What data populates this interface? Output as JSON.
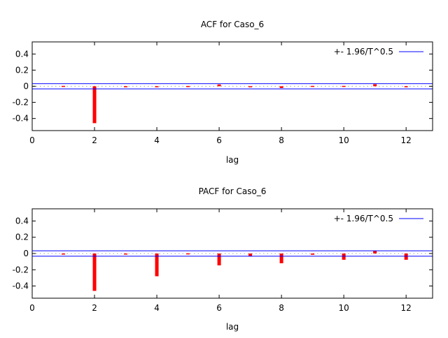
{
  "chart_data": [
    {
      "type": "bar",
      "title": "ACF for Caso_6",
      "xlabel": "lag",
      "ylabel": "",
      "xlim": [
        0,
        12.85
      ],
      "ylim": [
        -0.55,
        0.55
      ],
      "xticks": [
        "0",
        "2",
        "4",
        "6",
        "8",
        "10",
        "12"
      ],
      "yticks": [
        "0.4",
        "0.2",
        "0",
        "-0.2",
        "-0.4"
      ],
      "legend": {
        "label": "+- 1.96/T^0.5",
        "position": "top-right"
      },
      "band": 0.033,
      "lags": [
        1,
        2,
        3,
        4,
        5,
        6,
        7,
        8,
        9,
        10,
        11,
        12
      ],
      "values": [
        0.005,
        -0.458,
        0.0,
        -0.01,
        0.003,
        0.022,
        -0.01,
        -0.022,
        0.005,
        0.005,
        0.025,
        -0.012
      ],
      "colors": {
        "bar": "#ff0000",
        "band": "#0000ff",
        "zero": "#a0a0a0"
      }
    },
    {
      "type": "bar",
      "title": "PACF for Caso_6",
      "xlabel": "lag",
      "ylabel": "",
      "xlim": [
        0,
        12.85
      ],
      "ylim": [
        -0.55,
        0.55
      ],
      "xticks": [
        "0",
        "2",
        "4",
        "6",
        "8",
        "10",
        "12"
      ],
      "yticks": [
        "0.4",
        "0.2",
        "0",
        "-0.2",
        "-0.4"
      ],
      "legend": {
        "label": "+- 1.96/T^0.5",
        "position": "top-right"
      },
      "band": 0.033,
      "lags": [
        1,
        2,
        3,
        4,
        5,
        6,
        7,
        8,
        9,
        10,
        11,
        12
      ],
      "values": [
        -0.004,
        -0.46,
        -0.004,
        -0.28,
        0.002,
        -0.146,
        -0.03,
        -0.12,
        -0.015,
        -0.077,
        0.03,
        -0.077
      ],
      "colors": {
        "bar": "#ff0000",
        "band": "#0000ff",
        "zero": "#a0a0a0"
      }
    }
  ]
}
